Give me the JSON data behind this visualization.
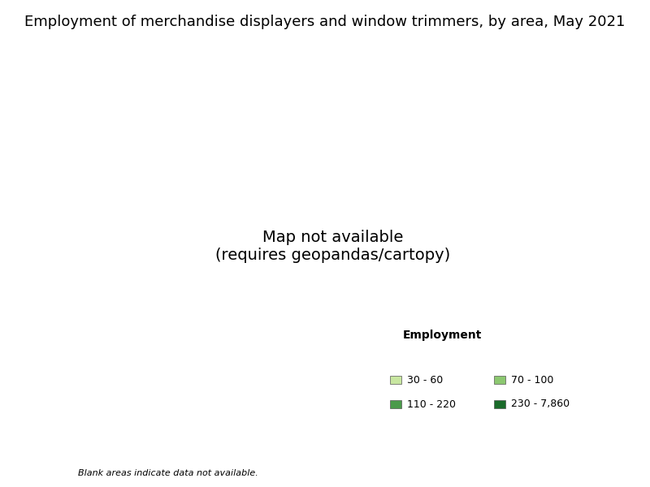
{
  "title": "Employment of merchandise displayers and window trimmers, by area, May 2021",
  "legend_title": "Employment",
  "legend_items": [
    {
      "label": "30 - 60",
      "color": "#c8e6a0"
    },
    {
      "label": "70 - 100",
      "color": "#8cc870"
    },
    {
      "label": "110 - 220",
      "color": "#4a9a4a"
    },
    {
      "label": "230 - 7,860",
      "color": "#1a6b2a"
    }
  ],
  "no_data_color": "#ffffff",
  "tan_color": "#a89070",
  "footnote": "Blank areas indicate data not available.",
  "background_color": "#ffffff",
  "title_fontsize": 13,
  "legend_fontsize": 9,
  "border_color": "#333333",
  "border_width": 0.3
}
